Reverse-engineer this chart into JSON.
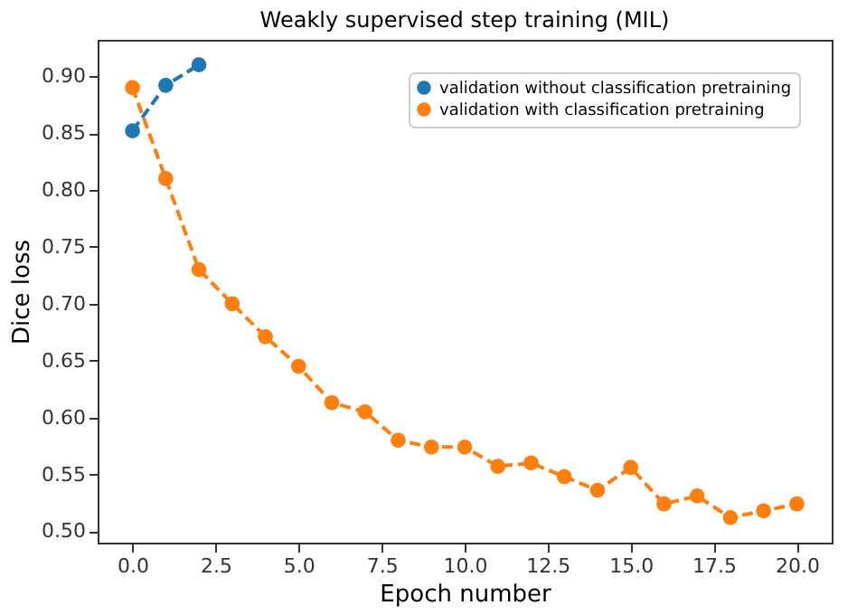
{
  "chart_data": {
    "type": "line",
    "title": "Weakly supervised step training (MIL)",
    "xlabel": "Epoch number",
    "ylabel": "Dice loss",
    "series": [
      {
        "name": "validation without classification pretraining",
        "color": "#1f77b4",
        "x": [
          0,
          1,
          2
        ],
        "values": [
          0.852,
          0.892,
          0.91
        ]
      },
      {
        "name": "validation with classification pretraining",
        "color": "#ff7f0e",
        "x": [
          0,
          1,
          2,
          3,
          4,
          5,
          6,
          7,
          8,
          9,
          10,
          11,
          12,
          13,
          14,
          15,
          16,
          17,
          18,
          19,
          20
        ],
        "values": [
          0.89,
          0.81,
          0.73,
          0.7,
          0.671,
          0.645,
          0.613,
          0.605,
          0.58,
          0.574,
          0.574,
          0.557,
          0.56,
          0.548,
          0.536,
          0.556,
          0.524,
          0.531,
          0.512,
          0.518,
          0.524
        ]
      }
    ],
    "xlim": [
      -1.05,
      21.05
    ],
    "xticks": [
      {
        "value": 0,
        "label": "0.0"
      },
      {
        "value": 2.5,
        "label": "2.5"
      },
      {
        "value": 5,
        "label": "5.0"
      },
      {
        "value": 7.5,
        "label": "7.5"
      },
      {
        "value": 10,
        "label": "10.0"
      },
      {
        "value": 12.5,
        "label": "12.5"
      },
      {
        "value": 15,
        "label": "15.0"
      },
      {
        "value": 17.5,
        "label": "17.5"
      },
      {
        "value": 20,
        "label": "20.0"
      }
    ],
    "ylim": [
      0.49,
      0.932
    ],
    "yticks": [
      {
        "value": 0.5,
        "label": "0.50"
      },
      {
        "value": 0.55,
        "label": "0.55"
      },
      {
        "value": 0.6,
        "label": "0.60"
      },
      {
        "value": 0.65,
        "label": "0.65"
      },
      {
        "value": 0.7,
        "label": "0.70"
      },
      {
        "value": 0.75,
        "label": "0.75"
      },
      {
        "value": 0.8,
        "label": "0.80"
      },
      {
        "value": 0.85,
        "label": "0.85"
      },
      {
        "value": 0.9,
        "label": "0.90"
      }
    ],
    "grid": false,
    "legend": "top right",
    "marker": "circle",
    "line_style": "dashed"
  }
}
